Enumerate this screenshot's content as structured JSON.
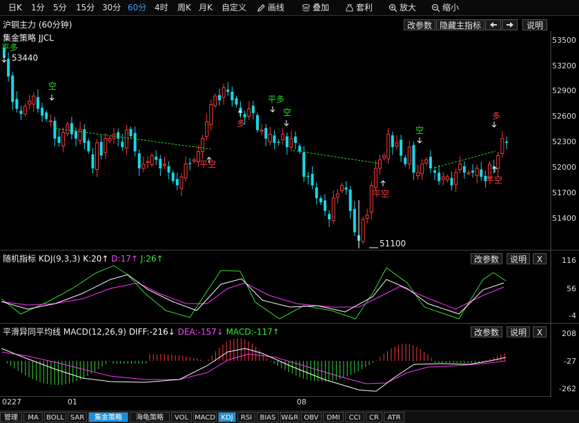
{
  "toolbar": {
    "periods": [
      "日K",
      "1分",
      "5分",
      "15分",
      "30分",
      "60分",
      "4时",
      "周K",
      "月K",
      "自定义"
    ],
    "active_period": "60分",
    "draw_label": "画线",
    "overlay_label": "叠加",
    "arbitrage_label": "套利",
    "zoom_in_label": "放大",
    "zoom_out_label": "缩小"
  },
  "main_panel": {
    "instrument": "沪铜主力 (60分钟)",
    "strategy": "集金策略 JJCL",
    "buttons": [
      "改参数",
      "隐藏主指标",
      "说明"
    ],
    "high_label": "53440",
    "low_label": "51100",
    "y_ticks": [
      "53500",
      "53200",
      "52900",
      "52600",
      "52300",
      "52000",
      "51700",
      "51400"
    ],
    "signals": [
      "平多",
      "空",
      "多",
      "平多",
      "空",
      "平空",
      "空",
      "平空",
      "多",
      "平空"
    ]
  },
  "kdj_panel": {
    "name": "随机指标",
    "params": "KDJ(9,3,3)",
    "k_text": "K:20↑",
    "d_text": "D:17↑",
    "j_text": "J:26↑",
    "buttons": [
      "改参数",
      "说明",
      "X"
    ],
    "y_ticks": [
      "116",
      "56",
      "-4"
    ]
  },
  "macd_panel": {
    "name": "平滑异同平均线",
    "params": "MACD(12,26,9)",
    "diff_text": "DIFF:-216↓",
    "dea_text": "DEA:-157↓",
    "macd_text": "MACD:-117↑",
    "buttons": [
      "改参数",
      "说明",
      "X"
    ],
    "y_ticks": [
      "208",
      "-27",
      "-262"
    ]
  },
  "dates": [
    "0227",
    "01",
    "08"
  ],
  "bottom_tabs": [
    "管理",
    "MA",
    "BOLL",
    "SAR",
    "集金策略",
    "海龟策略",
    "VOL",
    "MACD",
    "KDJ",
    "RSI",
    "BIAS",
    "W&R",
    "OBV",
    "DMI",
    "CCI",
    "CR",
    "ATR"
  ],
  "active_tabs": [
    "集金策略",
    "KDJ"
  ],
  "colors": {
    "up": "#ff3b3b",
    "down": "#19d7e8",
    "k_line": "#ffffff",
    "d_line": "#ff33ff",
    "j_line": "#33dd33",
    "signal_buy": "#ff3b3b",
    "signal_sell": "#22dd22",
    "dashed_trend": "#22dd22"
  }
}
